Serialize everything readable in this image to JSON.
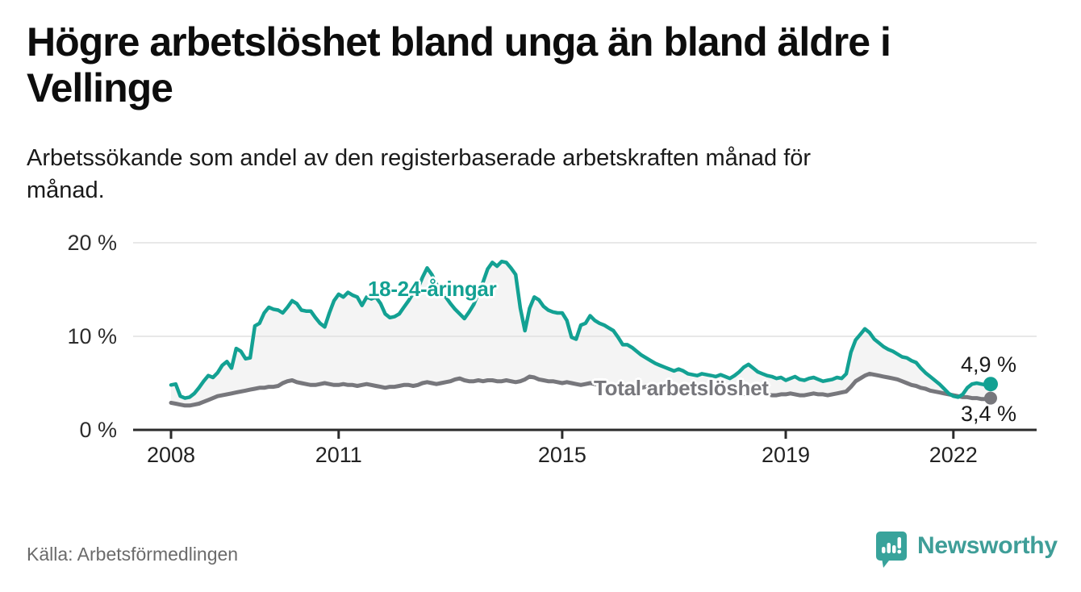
{
  "header": {
    "title": "Högre arbetslöshet bland unga än bland äldre i\nVellinge",
    "subtitle": "Arbetssökande som andel av den registerbaserade arbetskraften månad för\nmånad."
  },
  "source": {
    "label": "Källa: Arbetsförmedlingen"
  },
  "branding": {
    "name": "Newsworthy",
    "color": "#3f9e98",
    "icon": "newsworthy-speech-bubble-bar-chart-icon",
    "icon_color": "#38a39b"
  },
  "colors": {
    "background": "#ffffff",
    "youth_line": "#13a193",
    "total_line": "#77777c",
    "area_between": "#f4f4f4",
    "gridline": "#e0e0e0",
    "axis": "#2b2b2b",
    "value_label_text": "#1a1a1a"
  },
  "chart_data": {
    "type": "line",
    "title": "Högre arbetslöshet bland unga än bland äldre i Vellinge",
    "subtitle": "Arbetssökande som andel av den registerbaserade arbetskraften månad för månad.",
    "unit": "%",
    "frequency": "monthly",
    "x_start": "2008-01",
    "x_end": "2022-09",
    "grid": true,
    "legend_position": "inline-annotations",
    "area_between_series_fill": true,
    "ylim": [
      0,
      21
    ],
    "y_ticks": [
      {
        "value": 0,
        "label": "0 %"
      },
      {
        "value": 10,
        "label": "10 %"
      },
      {
        "value": 20,
        "label": "20 %"
      }
    ],
    "x_ticks": [
      {
        "label": "2008",
        "month_index": 0
      },
      {
        "label": "2011",
        "month_index": 36
      },
      {
        "label": "2015",
        "month_index": 84
      },
      {
        "label": "2019",
        "month_index": 132
      },
      {
        "label": "2022",
        "month_index": 168
      }
    ],
    "series": [
      {
        "name": "18-24-åringar",
        "color": "#13a193",
        "end_label": "4,9 %",
        "end_value": 4.9,
        "values": [
          4.8,
          4.9,
          3.6,
          3.4,
          3.5,
          3.9,
          4.5,
          5.2,
          5.8,
          5.6,
          6.1,
          6.9,
          7.3,
          6.6,
          8.7,
          8.4,
          7.6,
          7.7,
          11.1,
          11.4,
          12.5,
          13.1,
          12.9,
          12.8,
          12.5,
          13.1,
          13.8,
          13.5,
          12.8,
          12.7,
          12.7,
          12.0,
          11.4,
          11.0,
          12.5,
          13.8,
          14.5,
          14.2,
          14.7,
          14.4,
          14.2,
          13.3,
          14.2,
          14.0,
          14.2,
          13.5,
          12.4,
          12.0,
          12.1,
          12.4,
          13.1,
          13.8,
          14.6,
          15.1,
          16.3,
          17.3,
          16.6,
          15.6,
          14.8,
          14.2,
          13.5,
          12.9,
          12.4,
          11.9,
          12.6,
          13.4,
          14.6,
          15.8,
          17.2,
          17.9,
          17.5,
          18.0,
          17.9,
          17.3,
          16.6,
          13.0,
          10.6,
          13.0,
          14.2,
          13.9,
          13.2,
          12.8,
          12.6,
          12.5,
          12.5,
          11.7,
          9.9,
          9.7,
          11.2,
          11.4,
          12.2,
          11.7,
          11.4,
          11.2,
          10.9,
          10.6,
          9.9,
          9.1,
          9.1,
          8.8,
          8.4,
          8.0,
          7.7,
          7.4,
          7.1,
          6.9,
          6.7,
          6.5,
          6.3,
          6.5,
          6.3,
          6.0,
          5.9,
          5.8,
          6.0,
          5.9,
          5.8,
          5.7,
          5.9,
          5.7,
          5.5,
          5.8,
          6.2,
          6.7,
          7.0,
          6.6,
          6.2,
          6.0,
          5.8,
          5.7,
          5.5,
          5.6,
          5.3,
          5.5,
          5.7,
          5.4,
          5.3,
          5.5,
          5.6,
          5.4,
          5.2,
          5.3,
          5.4,
          5.6,
          5.5,
          6.0,
          8.3,
          9.6,
          10.2,
          10.8,
          10.4,
          9.7,
          9.3,
          8.9,
          8.6,
          8.4,
          8.1,
          7.8,
          7.7,
          7.4,
          7.2,
          6.6,
          6.1,
          5.7,
          5.3,
          4.9,
          4.4,
          3.9,
          3.6,
          3.5,
          3.8,
          4.5,
          4.9,
          5.0,
          4.9,
          4.8,
          4.9
        ]
      },
      {
        "name": "Total arbetslöshet",
        "color": "#77777c",
        "end_label": "3,4 %",
        "end_value": 3.4,
        "values": [
          2.9,
          2.8,
          2.7,
          2.6,
          2.6,
          2.7,
          2.8,
          3.0,
          3.2,
          3.4,
          3.6,
          3.7,
          3.8,
          3.9,
          4.0,
          4.1,
          4.2,
          4.3,
          4.4,
          4.5,
          4.5,
          4.6,
          4.6,
          4.7,
          5.0,
          5.2,
          5.3,
          5.1,
          5.0,
          4.9,
          4.8,
          4.8,
          4.9,
          5.0,
          4.9,
          4.8,
          4.8,
          4.9,
          4.8,
          4.8,
          4.7,
          4.8,
          4.9,
          4.8,
          4.7,
          4.6,
          4.5,
          4.6,
          4.6,
          4.7,
          4.8,
          4.8,
          4.7,
          4.8,
          5.0,
          5.1,
          5.0,
          4.9,
          5.0,
          5.1,
          5.2,
          5.4,
          5.5,
          5.3,
          5.2,
          5.2,
          5.3,
          5.2,
          5.3,
          5.3,
          5.2,
          5.2,
          5.3,
          5.2,
          5.1,
          5.2,
          5.4,
          5.7,
          5.6,
          5.4,
          5.3,
          5.2,
          5.2,
          5.1,
          5.0,
          5.1,
          5.0,
          4.9,
          4.8,
          4.9,
          5.0,
          4.9,
          4.8,
          4.7,
          4.7,
          4.6,
          4.6,
          4.7,
          4.6,
          4.5,
          4.4,
          4.5,
          4.6,
          4.5,
          4.4,
          4.3,
          4.3,
          4.4,
          4.3,
          4.4,
          4.3,
          4.2,
          4.1,
          4.2,
          4.3,
          4.2,
          4.1,
          4.0,
          4.0,
          4.1,
          4.0,
          4.1,
          4.0,
          3.9,
          3.8,
          3.9,
          4.0,
          3.9,
          3.8,
          3.7,
          3.7,
          3.8,
          3.8,
          3.9,
          3.8,
          3.7,
          3.7,
          3.8,
          3.9,
          3.8,
          3.8,
          3.7,
          3.8,
          3.9,
          4.0,
          4.1,
          4.6,
          5.2,
          5.5,
          5.8,
          6.0,
          5.9,
          5.8,
          5.7,
          5.6,
          5.5,
          5.4,
          5.2,
          5.0,
          4.8,
          4.7,
          4.5,
          4.4,
          4.2,
          4.1,
          4.0,
          3.9,
          3.8,
          3.7,
          3.6,
          3.5,
          3.5,
          3.4,
          3.4,
          3.3,
          3.3,
          3.4
        ]
      }
    ]
  }
}
